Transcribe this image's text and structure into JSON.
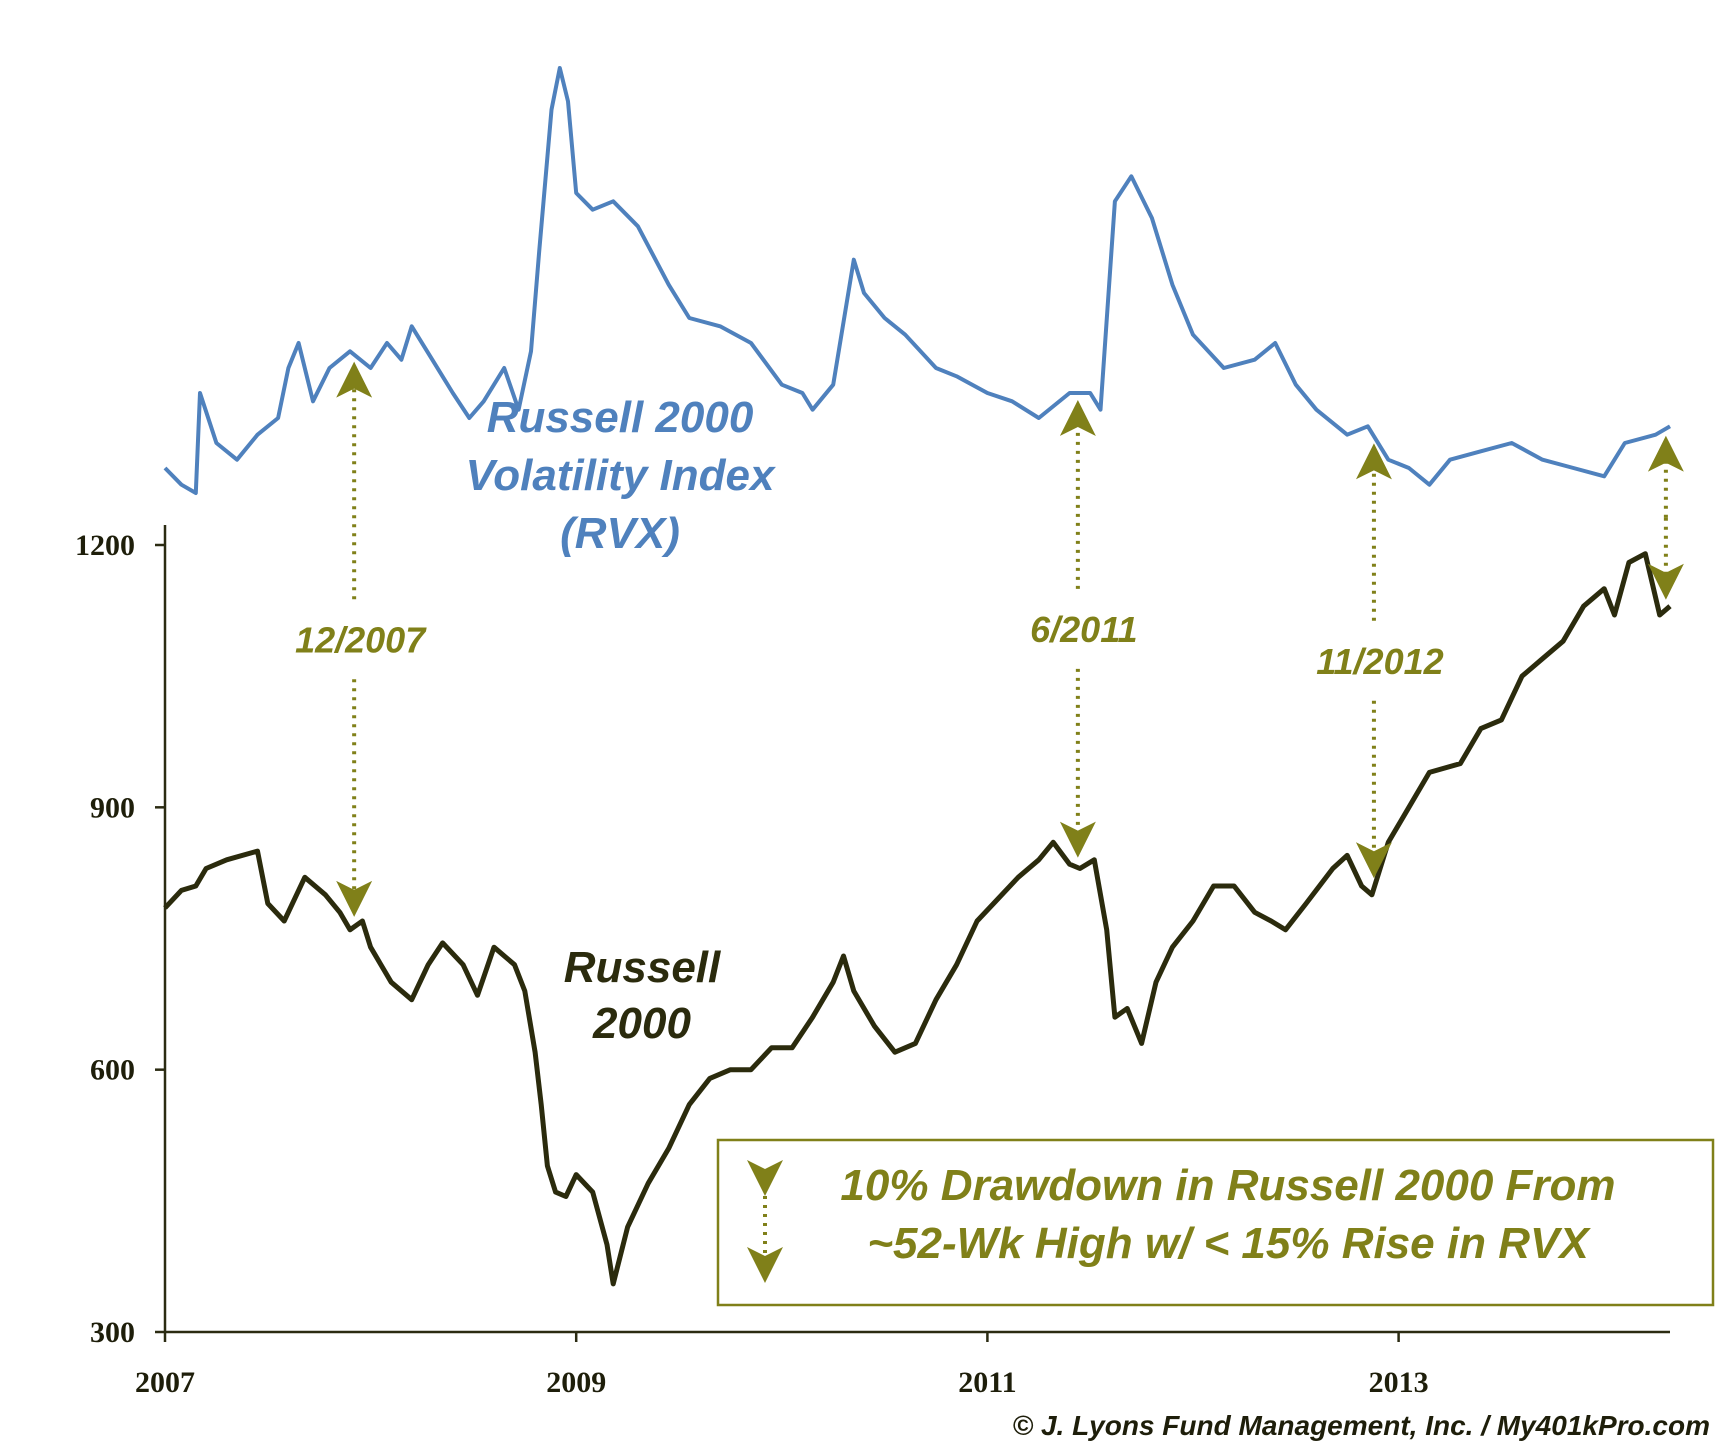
{
  "chart_data": {
    "type": "line",
    "colors": {
      "rvx": "#4f81bd",
      "russell": "#2b2b0d",
      "annotation": "#808019"
    },
    "x_ticks": [
      "2007",
      "2009",
      "2011",
      "2013"
    ],
    "y_ticks": [
      "300",
      "600",
      "900",
      "1200"
    ],
    "ylim": [
      300,
      1200
    ],
    "series": [
      {
        "key": "rvx",
        "label_lines": [
          "Russell 2000",
          "Volatility Index",
          "(RVX)"
        ],
        "note": "plotted on an unlabeled scale above the Russell 2000",
        "points": [
          [
            2007.0,
            19
          ],
          [
            2007.08,
            17
          ],
          [
            2007.15,
            16
          ],
          [
            2007.17,
            28
          ],
          [
            2007.25,
            22
          ],
          [
            2007.35,
            20
          ],
          [
            2007.45,
            23
          ],
          [
            2007.55,
            25
          ],
          [
            2007.6,
            31
          ],
          [
            2007.65,
            34
          ],
          [
            2007.72,
            27
          ],
          [
            2007.8,
            31
          ],
          [
            2007.9,
            33
          ],
          [
            2008.0,
            31
          ],
          [
            2008.08,
            34
          ],
          [
            2008.15,
            32
          ],
          [
            2008.2,
            36
          ],
          [
            2008.3,
            32
          ],
          [
            2008.4,
            28
          ],
          [
            2008.48,
            25
          ],
          [
            2008.55,
            27
          ],
          [
            2008.65,
            31
          ],
          [
            2008.72,
            26
          ],
          [
            2008.78,
            33
          ],
          [
            2008.82,
            45
          ],
          [
            2008.88,
            62
          ],
          [
            2008.92,
            67
          ],
          [
            2008.96,
            63
          ],
          [
            2009.0,
            52
          ],
          [
            2009.08,
            50
          ],
          [
            2009.18,
            51
          ],
          [
            2009.3,
            48
          ],
          [
            2009.45,
            41
          ],
          [
            2009.55,
            37
          ],
          [
            2009.7,
            36
          ],
          [
            2009.85,
            34
          ],
          [
            2010.0,
            29
          ],
          [
            2010.1,
            28
          ],
          [
            2010.15,
            26
          ],
          [
            2010.25,
            29
          ],
          [
            2010.35,
            44
          ],
          [
            2010.4,
            40
          ],
          [
            2010.5,
            37
          ],
          [
            2010.6,
            35
          ],
          [
            2010.75,
            31
          ],
          [
            2010.85,
            30
          ],
          [
            2011.0,
            28
          ],
          [
            2011.12,
            27
          ],
          [
            2011.25,
            25
          ],
          [
            2011.4,
            28
          ],
          [
            2011.5,
            28
          ],
          [
            2011.55,
            26
          ],
          [
            2011.62,
            51
          ],
          [
            2011.7,
            54
          ],
          [
            2011.8,
            49
          ],
          [
            2011.9,
            41
          ],
          [
            2012.0,
            35
          ],
          [
            2012.15,
            31
          ],
          [
            2012.3,
            32
          ],
          [
            2012.4,
            34
          ],
          [
            2012.5,
            29
          ],
          [
            2012.6,
            26
          ],
          [
            2012.75,
            23
          ],
          [
            2012.85,
            24
          ],
          [
            2012.95,
            20
          ],
          [
            2013.05,
            19
          ],
          [
            2013.15,
            17
          ],
          [
            2013.25,
            20
          ],
          [
            2013.4,
            21
          ],
          [
            2013.55,
            22
          ],
          [
            2013.7,
            20
          ],
          [
            2013.85,
            19
          ],
          [
            2014.0,
            18
          ],
          [
            2014.05,
            20
          ],
          [
            2014.1,
            22
          ],
          [
            2014.25,
            23
          ],
          [
            2014.32,
            24
          ]
        ]
      },
      {
        "key": "russell",
        "label_lines": [
          "Russell",
          "2000"
        ],
        "points": [
          [
            2007.0,
            785
          ],
          [
            2007.08,
            805
          ],
          [
            2007.15,
            810
          ],
          [
            2007.2,
            830
          ],
          [
            2007.3,
            840
          ],
          [
            2007.45,
            850
          ],
          [
            2007.5,
            790
          ],
          [
            2007.58,
            770
          ],
          [
            2007.68,
            820
          ],
          [
            2007.78,
            800
          ],
          [
            2007.85,
            780
          ],
          [
            2007.9,
            760
          ],
          [
            2007.96,
            770
          ],
          [
            2008.0,
            740
          ],
          [
            2008.1,
            700
          ],
          [
            2008.2,
            680
          ],
          [
            2008.28,
            720
          ],
          [
            2008.35,
            745
          ],
          [
            2008.45,
            720
          ],
          [
            2008.52,
            685
          ],
          [
            2008.6,
            740
          ],
          [
            2008.7,
            720
          ],
          [
            2008.75,
            690
          ],
          [
            2008.8,
            620
          ],
          [
            2008.83,
            560
          ],
          [
            2008.86,
            490
          ],
          [
            2008.9,
            460
          ],
          [
            2008.95,
            455
          ],
          [
            2009.0,
            480
          ],
          [
            2009.08,
            460
          ],
          [
            2009.15,
            400
          ],
          [
            2009.18,
            355
          ],
          [
            2009.25,
            420
          ],
          [
            2009.35,
            470
          ],
          [
            2009.45,
            510
          ],
          [
            2009.55,
            560
          ],
          [
            2009.65,
            590
          ],
          [
            2009.75,
            600
          ],
          [
            2009.85,
            600
          ],
          [
            2009.95,
            625
          ],
          [
            2010.05,
            625
          ],
          [
            2010.15,
            660
          ],
          [
            2010.25,
            700
          ],
          [
            2010.3,
            730
          ],
          [
            2010.35,
            690
          ],
          [
            2010.45,
            650
          ],
          [
            2010.55,
            620
          ],
          [
            2010.65,
            630
          ],
          [
            2010.75,
            680
          ],
          [
            2010.85,
            720
          ],
          [
            2010.95,
            770
          ],
          [
            2011.05,
            795
          ],
          [
            2011.15,
            820
          ],
          [
            2011.25,
            840
          ],
          [
            2011.32,
            860
          ],
          [
            2011.4,
            835
          ],
          [
            2011.45,
            830
          ],
          [
            2011.52,
            840
          ],
          [
            2011.58,
            760
          ],
          [
            2011.62,
            660
          ],
          [
            2011.68,
            670
          ],
          [
            2011.75,
            630
          ],
          [
            2011.82,
            700
          ],
          [
            2011.9,
            740
          ],
          [
            2012.0,
            770
          ],
          [
            2012.1,
            810
          ],
          [
            2012.2,
            810
          ],
          [
            2012.3,
            780
          ],
          [
            2012.38,
            770
          ],
          [
            2012.45,
            760
          ],
          [
            2012.55,
            790
          ],
          [
            2012.68,
            830
          ],
          [
            2012.75,
            845
          ],
          [
            2012.82,
            810
          ],
          [
            2012.87,
            800
          ],
          [
            2012.95,
            860
          ],
          [
            2013.05,
            900
          ],
          [
            2013.15,
            940
          ],
          [
            2013.3,
            950
          ],
          [
            2013.4,
            990
          ],
          [
            2013.5,
            1000
          ],
          [
            2013.6,
            1050
          ],
          [
            2013.7,
            1070
          ],
          [
            2013.8,
            1090
          ],
          [
            2013.9,
            1130
          ],
          [
            2014.0,
            1150
          ],
          [
            2014.05,
            1120
          ],
          [
            2014.12,
            1180
          ],
          [
            2014.2,
            1190
          ],
          [
            2014.27,
            1120
          ],
          [
            2014.32,
            1130
          ]
        ]
      }
    ],
    "annotations": [
      {
        "label": "12/2007",
        "x": 2007.92
      },
      {
        "label": "6/2011",
        "x": 2011.44
      },
      {
        "label": "11/2012",
        "x": 2012.88
      },
      {
        "label": "",
        "x": 2014.3
      }
    ],
    "legend": {
      "lines": [
        "10% Drawdown in Russell 2000 From",
        "~52-Wk High w/ < 15% Rise in RVX"
      ],
      "position": "bottom-right"
    },
    "credit": "© J. Lyons Fund Management, Inc. / My401kPro.com"
  }
}
